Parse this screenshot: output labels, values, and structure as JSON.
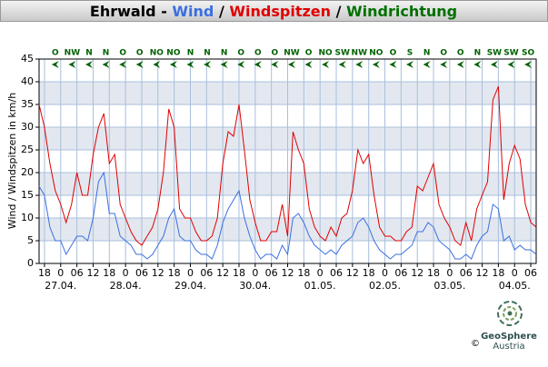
{
  "chart_data": {
    "type": "line",
    "title_parts": [
      {
        "text": "Ehrwald - ",
        "color": "#000000"
      },
      {
        "text": "Wind",
        "color": "#3a6fe0"
      },
      {
        "text": " / ",
        "color": "#000000"
      },
      {
        "text": "Windspitzen",
        "color": "#e00000"
      },
      {
        "text": " / ",
        "color": "#000000"
      },
      {
        "text": "Windrichtung",
        "color": "#007000"
      }
    ],
    "y_label": "Wind / Windspitzen in km/h",
    "xlim": [
      -8,
      176
    ],
    "ylim": [
      0,
      45
    ],
    "yticks": [
      0,
      5,
      10,
      15,
      20,
      25,
      30,
      35,
      40,
      45
    ],
    "xticks": [
      {
        "value": -6,
        "label": "18"
      },
      {
        "value": 0,
        "label": "0"
      },
      {
        "value": 6,
        "label": "06"
      },
      {
        "value": 12,
        "label": "12"
      },
      {
        "value": 18,
        "label": "18"
      },
      {
        "value": 24,
        "label": "0"
      },
      {
        "value": 30,
        "label": "06"
      },
      {
        "value": 36,
        "label": "12"
      },
      {
        "value": 42,
        "label": "18"
      },
      {
        "value": 48,
        "label": "0"
      },
      {
        "value": 54,
        "label": "06"
      },
      {
        "value": 60,
        "label": "12"
      },
      {
        "value": 66,
        "label": "18"
      },
      {
        "value": 72,
        "label": "0"
      },
      {
        "value": 78,
        "label": "06"
      },
      {
        "value": 84,
        "label": "12"
      },
      {
        "value": 90,
        "label": "18"
      },
      {
        "value": 96,
        "label": "0"
      },
      {
        "value": 102,
        "label": "06"
      },
      {
        "value": 108,
        "label": "12"
      },
      {
        "value": 114,
        "label": "18"
      },
      {
        "value": 120,
        "label": "0"
      },
      {
        "value": 126,
        "label": "06"
      },
      {
        "value": 132,
        "label": "12"
      },
      {
        "value": 138,
        "label": "18"
      },
      {
        "value": 144,
        "label": "0"
      },
      {
        "value": 150,
        "label": "06"
      },
      {
        "value": 156,
        "label": "12"
      },
      {
        "value": 162,
        "label": "18"
      },
      {
        "value": 168,
        "label": "0"
      },
      {
        "value": 174,
        "label": "06"
      }
    ],
    "date_labels": [
      {
        "value": 0,
        "label": "27.04."
      },
      {
        "value": 24,
        "label": "28.04."
      },
      {
        "value": 48,
        "label": "29.04."
      },
      {
        "value": 72,
        "label": "30.04."
      },
      {
        "value": 96,
        "label": "01.05."
      },
      {
        "value": 120,
        "label": "02.05."
      },
      {
        "value": 144,
        "label": "03.05."
      },
      {
        "value": 168,
        "label": "04.05."
      }
    ],
    "shaded_bands": [
      [
        5,
        10
      ],
      [
        15,
        20
      ],
      [
        25,
        30
      ],
      [
        35,
        40
      ]
    ],
    "grid": true,
    "x": [
      -8,
      -6,
      -4,
      -2,
      0,
      2,
      4,
      6,
      8,
      10,
      12,
      14,
      16,
      18,
      20,
      22,
      24,
      26,
      28,
      30,
      32,
      34,
      36,
      38,
      40,
      42,
      44,
      46,
      48,
      50,
      52,
      54,
      56,
      58,
      60,
      62,
      64,
      66,
      68,
      70,
      72,
      74,
      76,
      78,
      80,
      82,
      84,
      86,
      88,
      90,
      92,
      94,
      96,
      98,
      100,
      102,
      104,
      106,
      108,
      110,
      112,
      114,
      116,
      118,
      120,
      122,
      124,
      126,
      128,
      130,
      132,
      134,
      136,
      138,
      140,
      142,
      144,
      146,
      148,
      150,
      152,
      154,
      156,
      158,
      160,
      162,
      164,
      166,
      168,
      170,
      172,
      174,
      176
    ],
    "series": [
      {
        "name": "Windspitzen",
        "color": "#e00000",
        "values": [
          35,
          30,
          22,
          16,
          13,
          9,
          13,
          20,
          15,
          15,
          24,
          30,
          33,
          22,
          24,
          13,
          10,
          7,
          5,
          4,
          6,
          8,
          12,
          20,
          34,
          30,
          12,
          10,
          10,
          7,
          5,
          5,
          6,
          10,
          22,
          29,
          28,
          35,
          25,
          14,
          9,
          5,
          5,
          7,
          7,
          13,
          6,
          29,
          25,
          22,
          12,
          8,
          6,
          5,
          8,
          6,
          10,
          11,
          16,
          25,
          22,
          24,
          15,
          8,
          6,
          6,
          5,
          5,
          7,
          8,
          17,
          16,
          19,
          22,
          13,
          10,
          8,
          5,
          4,
          9,
          5,
          12,
          15,
          18,
          36,
          39,
          14,
          22,
          26,
          23,
          13,
          9,
          8
        ]
      },
      {
        "name": "Wind",
        "color": "#3a6fe0",
        "values": [
          17,
          15,
          8,
          5,
          5,
          2,
          4,
          6,
          6,
          5,
          10,
          18,
          20,
          11,
          11,
          6,
          5,
          4,
          2,
          2,
          1,
          2,
          4,
          6,
          10,
          12,
          6,
          5,
          5,
          3,
          2,
          2,
          1,
          4,
          9,
          12,
          14,
          16,
          10,
          6,
          3,
          1,
          2,
          2,
          1,
          4,
          2,
          10,
          11,
          9,
          6,
          4,
          3,
          2,
          3,
          2,
          4,
          5,
          6,
          9,
          10,
          8,
          5,
          3,
          2,
          1,
          2,
          2,
          3,
          4,
          7,
          7,
          9,
          8,
          5,
          4,
          3,
          1,
          1,
          2,
          1,
          4,
          6,
          7,
          13,
          12,
          5,
          6,
          3,
          4,
          3,
          3,
          2
        ]
      }
    ],
    "direction_color": "#006000",
    "directions": [
      {
        "x": -2,
        "label": "O"
      },
      {
        "x": 4.25,
        "label": "NW"
      },
      {
        "x": 10.5,
        "label": "N"
      },
      {
        "x": 16.75,
        "label": "N"
      },
      {
        "x": 23,
        "label": "O"
      },
      {
        "x": 29.25,
        "label": "O"
      },
      {
        "x": 35.5,
        "label": "NO"
      },
      {
        "x": 41.75,
        "label": "NO"
      },
      {
        "x": 48,
        "label": "N"
      },
      {
        "x": 54.25,
        "label": "N"
      },
      {
        "x": 60.5,
        "label": "N"
      },
      {
        "x": 66.75,
        "label": "O"
      },
      {
        "x": 73,
        "label": "O"
      },
      {
        "x": 79.25,
        "label": "O"
      },
      {
        "x": 85.5,
        "label": "NW"
      },
      {
        "x": 91.75,
        "label": "O"
      },
      {
        "x": 98,
        "label": "NO"
      },
      {
        "x": 104.25,
        "label": "SW"
      },
      {
        "x": 110.5,
        "label": "NW"
      },
      {
        "x": 116.75,
        "label": "NO"
      },
      {
        "x": 123,
        "label": "O"
      },
      {
        "x": 129.25,
        "label": "S"
      },
      {
        "x": 135.5,
        "label": "N"
      },
      {
        "x": 141.75,
        "label": "O"
      },
      {
        "x": 148,
        "label": "O"
      },
      {
        "x": 154.25,
        "label": "N"
      },
      {
        "x": 160.5,
        "label": "SW"
      },
      {
        "x": 166.75,
        "label": "SW"
      },
      {
        "x": 173,
        "label": "SO"
      }
    ],
    "footer": {
      "copyright": "©",
      "brand": "GeoSphere",
      "brand_sub": "Austria"
    }
  }
}
